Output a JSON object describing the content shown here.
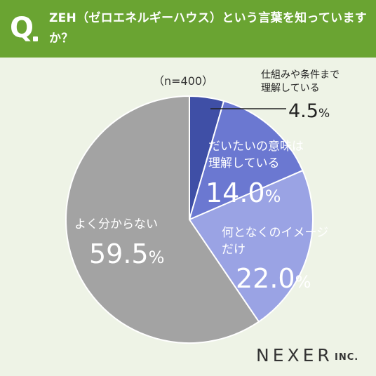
{
  "question": {
    "mark": "Q",
    "text": "ZEH（ゼロエネルギーハウス）という言葉を知っていますか？"
  },
  "chart_data": {
    "type": "pie",
    "sample_size": "（n=400）",
    "slices": [
      {
        "label": "仕組みや条件まで理解している",
        "value": 4.5,
        "display": "4.5",
        "color": "#3f4fa6"
      },
      {
        "label": "だいたいの意味は理解している",
        "value": 14.0,
        "display": "14.0",
        "color": "#6b78d1"
      },
      {
        "label": "何となくのイメージだけ",
        "value": 22.0,
        "display": "22.0",
        "color": "#9aa3e4"
      },
      {
        "label": "よく分からない",
        "value": 59.5,
        "display": "59.5",
        "color": "#a3a3a3"
      }
    ],
    "unit": "%"
  },
  "brand": {
    "name": "NEXER",
    "suffix": "INC."
  }
}
